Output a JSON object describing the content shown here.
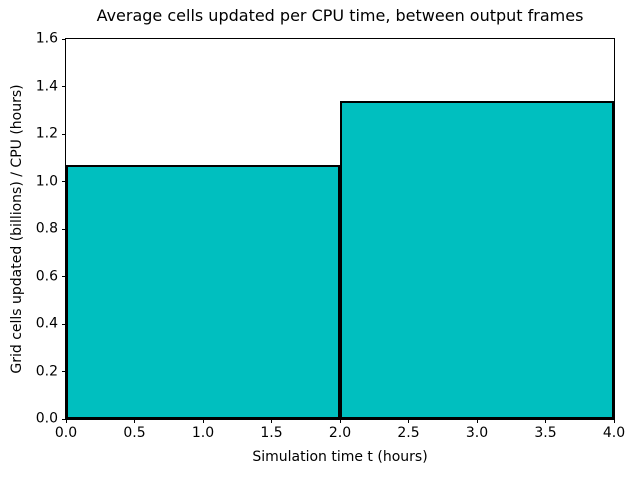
{
  "chart_data": {
    "type": "bar",
    "title": "Average cells updated per CPU time, between output frames",
    "xlabel": "Simulation time t (hours)",
    "ylabel": "Grid cells updated (billions) / CPU (hours)",
    "xlim": [
      0.0,
      4.0
    ],
    "ylim": [
      0.0,
      1.6
    ],
    "xticks": [
      0.0,
      0.5,
      1.0,
      1.5,
      2.0,
      2.5,
      3.0,
      3.5,
      4.0
    ],
    "xtick_labels": [
      "0.0",
      "0.5",
      "1.0",
      "1.5",
      "2.0",
      "2.5",
      "3.0",
      "3.5",
      "4.0"
    ],
    "yticks": [
      0.0,
      0.2,
      0.4,
      0.6,
      0.8,
      1.0,
      1.2,
      1.4,
      1.6
    ],
    "ytick_labels": [
      "0.0",
      "0.2",
      "0.4",
      "0.6",
      "0.8",
      "1.0",
      "1.2",
      "1.4",
      "1.6"
    ],
    "bars": [
      {
        "x_start": 0.0,
        "x_end": 2.0,
        "value": 1.07
      },
      {
        "x_start": 2.0,
        "x_end": 4.0,
        "value": 1.34
      }
    ],
    "bar_fill_color": "#00bfbf",
    "bar_edge_color": "#000000",
    "grid": false,
    "legend": null
  }
}
